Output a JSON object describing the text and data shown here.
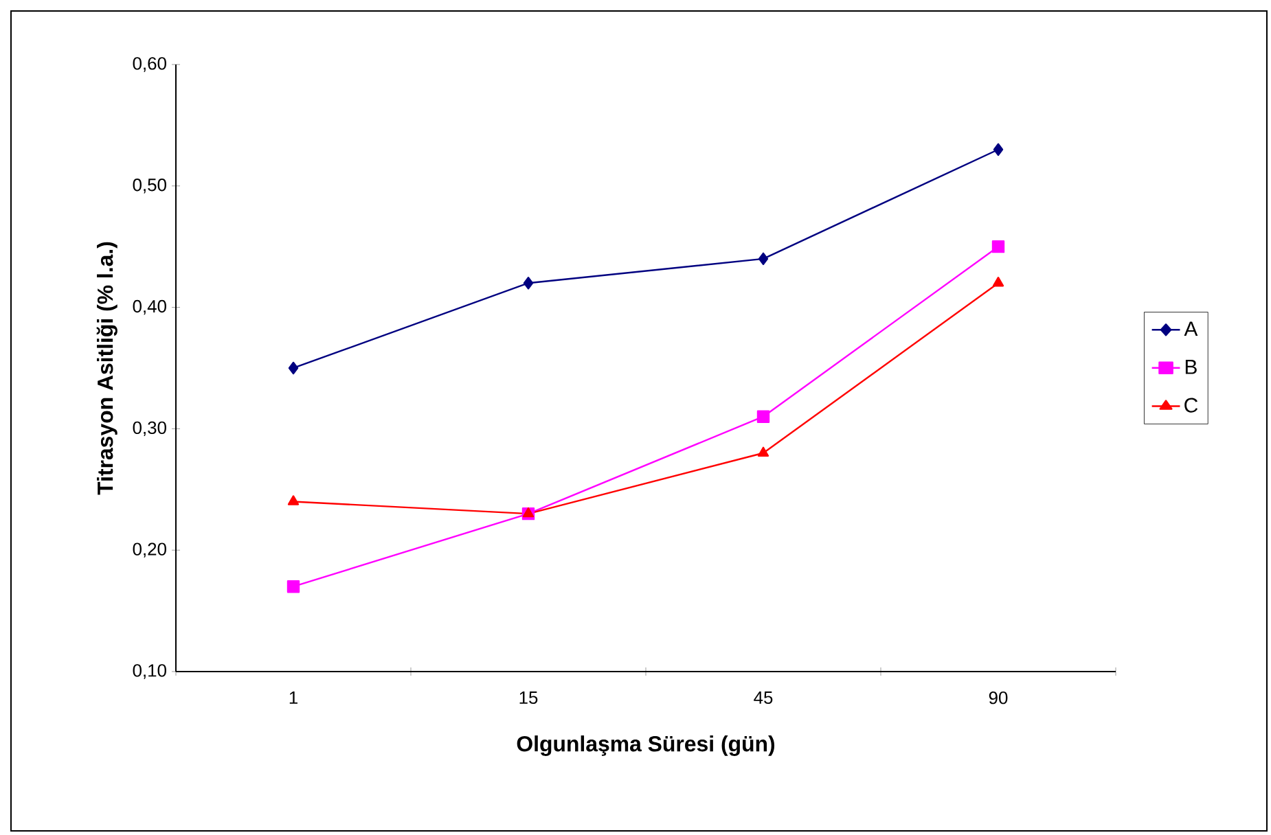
{
  "chart_data": {
    "type": "line",
    "xlabel": "Olgunlaşma Süresi (gün)",
    "ylabel": "Titrasyon Asitliği (% l.a.)",
    "categories": [
      "1",
      "15",
      "45",
      "90"
    ],
    "series": [
      {
        "name": "A",
        "color": "#000080",
        "marker": "diamond",
        "values": [
          0.35,
          0.42,
          0.44,
          0.53
        ]
      },
      {
        "name": "B",
        "color": "#ff00ff",
        "marker": "square",
        "values": [
          0.17,
          0.23,
          0.31,
          0.45
        ]
      },
      {
        "name": "C",
        "color": "#ff0000",
        "marker": "triangle",
        "values": [
          0.24,
          0.23,
          0.28,
          0.42
        ]
      }
    ],
    "ylim": [
      0.1,
      0.6
    ],
    "yticks": [
      {
        "value": 0.1,
        "label": "0,10"
      },
      {
        "value": 0.2,
        "label": "0,20"
      },
      {
        "value": 0.3,
        "label": "0,30"
      },
      {
        "value": 0.4,
        "label": "0,40"
      },
      {
        "value": 0.5,
        "label": "0,50"
      },
      {
        "value": 0.6,
        "label": "0,60"
      }
    ],
    "legend": "right",
    "line_style": "solid"
  }
}
